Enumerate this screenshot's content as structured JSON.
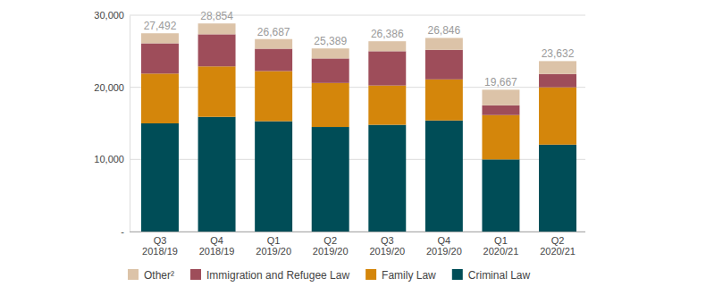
{
  "chart_data": {
    "type": "bar",
    "stacked": true,
    "grid": true,
    "legend": "bottom",
    "categories": [
      "Q3 2018/19",
      "Q4 2018/19",
      "Q1 2019/20",
      "Q2 2019/20",
      "Q3 2019/20",
      "Q4 2019/20",
      "Q1 2020/21",
      "Q2 2020/21"
    ],
    "series": [
      {
        "name": "Criminal Law",
        "color": "#004d57",
        "values": [
          15000,
          15900,
          15300,
          14500,
          14800,
          15400,
          10000,
          12050
        ]
      },
      {
        "name": "Family Law",
        "color": "#d4860b",
        "values": [
          6900,
          7000,
          6950,
          6100,
          5450,
          5700,
          6150,
          7950
        ]
      },
      {
        "name": "Immigration and Refugee Law",
        "color": "#9e4d5a",
        "values": [
          4200,
          4450,
          3100,
          3400,
          4750,
          4100,
          1350,
          1850
        ]
      },
      {
        "name": "Other²",
        "color": "#dcc3a8",
        "values": [
          1392,
          1504,
          1337,
          1389,
          1386,
          1646,
          2167,
          1782
        ]
      }
    ],
    "totals": [
      27492,
      28854,
      26687,
      25389,
      26386,
      26846,
      19667,
      23632
    ],
    "total_labels": [
      "27,492",
      "28,854",
      "26,687",
      "25,389",
      "26,386",
      "26,846",
      "19,667",
      "23,632"
    ],
    "ylim": [
      0,
      30000
    ],
    "yticks": [
      {
        "value": 0,
        "label": "-"
      },
      {
        "value": 10000,
        "label": "10,000"
      },
      {
        "value": 20000,
        "label": "20,000"
      },
      {
        "value": 30000,
        "label": "30,000"
      }
    ]
  }
}
